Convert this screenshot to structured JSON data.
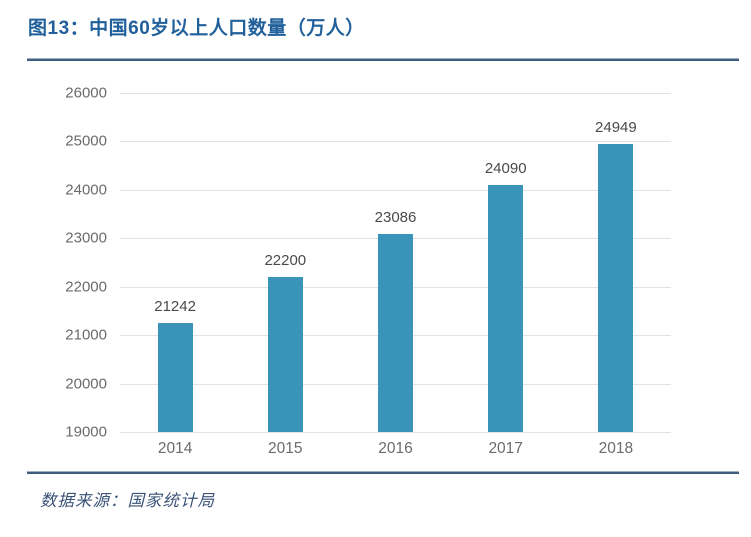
{
  "header": {
    "figure_label": "图13：中国60岁以上人口数量（万人）"
  },
  "footer": {
    "source_text": "数据来源：国家统计局"
  },
  "colors": {
    "bar": "#3A93B8",
    "title": "#21609A",
    "divider": "#3E5E80",
    "gridline": "#E2E2E2",
    "axis_label": "#6B6B6B",
    "value_label": "#4A4A4A",
    "source_text": "#3B5377"
  },
  "chart_data": {
    "type": "bar",
    "title": "中国60岁以上人口数量（万人）",
    "categories": [
      "2014",
      "2015",
      "2016",
      "2017",
      "2018"
    ],
    "values": [
      21242,
      22200,
      23086,
      24090,
      24949
    ],
    "xlabel": "",
    "ylabel": "",
    "ylim": [
      19000,
      26000
    ],
    "ytick_step": 1000,
    "yticks": [
      19000,
      20000,
      21000,
      22000,
      23000,
      24000,
      25000,
      26000
    ],
    "grid": true,
    "legend": false,
    "data_labels": true
  }
}
